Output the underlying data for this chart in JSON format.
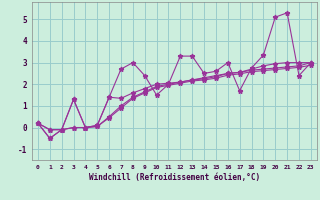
{
  "xlabel": "Windchill (Refroidissement éolien,°C)",
  "bg_color": "#cceedd",
  "grid_color": "#99cccc",
  "line_color": "#993399",
  "xlim": [
    -0.5,
    23.5
  ],
  "ylim": [
    -1.5,
    5.8
  ],
  "xticks": [
    0,
    1,
    2,
    3,
    4,
    5,
    6,
    7,
    8,
    9,
    10,
    11,
    12,
    13,
    14,
    15,
    16,
    17,
    18,
    19,
    20,
    21,
    22,
    23
  ],
  "yticks": [
    -1,
    0,
    1,
    2,
    3,
    4,
    5
  ],
  "series": [
    [
      0.2,
      -0.5,
      -0.1,
      1.3,
      0.0,
      0.1,
      1.4,
      2.7,
      3.0,
      2.4,
      1.5,
      2.0,
      3.3,
      3.3,
      2.5,
      2.6,
      3.0,
      1.7,
      2.75,
      3.35,
      5.1,
      5.3,
      2.4,
      3.0
    ],
    [
      0.2,
      -0.5,
      -0.1,
      1.3,
      0.0,
      0.1,
      1.4,
      1.35,
      1.6,
      1.8,
      2.0,
      2.05,
      2.1,
      2.2,
      2.3,
      2.4,
      2.5,
      2.55,
      2.7,
      2.85,
      2.95,
      3.0,
      3.0,
      3.0
    ],
    [
      0.2,
      -0.1,
      -0.1,
      0.0,
      0.0,
      0.05,
      0.5,
      1.0,
      1.4,
      1.65,
      1.9,
      2.0,
      2.1,
      2.2,
      2.25,
      2.35,
      2.5,
      2.55,
      2.65,
      2.7,
      2.75,
      2.8,
      2.85,
      3.0
    ],
    [
      0.2,
      -0.1,
      -0.1,
      0.0,
      0.0,
      0.05,
      0.45,
      0.9,
      1.35,
      1.6,
      1.85,
      1.95,
      2.05,
      2.15,
      2.2,
      2.28,
      2.42,
      2.48,
      2.58,
      2.63,
      2.68,
      2.73,
      2.78,
      2.88
    ]
  ]
}
